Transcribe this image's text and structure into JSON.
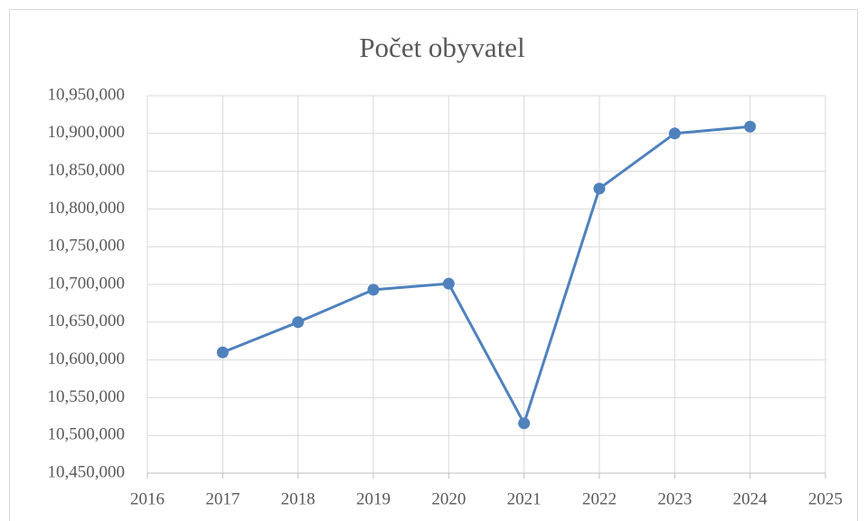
{
  "chart_data": {
    "type": "line",
    "title": "Počet obyvatel",
    "x": [
      2017,
      2018,
      2019,
      2020,
      2021,
      2022,
      2023,
      2024
    ],
    "series": [
      {
        "color": "#4f81bd",
        "values": [
          10610000,
          10650000,
          10693000,
          10701000,
          10516000,
          10827000,
          10900000,
          10909000
        ]
      }
    ],
    "xlim": [
      2016,
      2025
    ],
    "xticks": [
      2016,
      2017,
      2018,
      2019,
      2020,
      2021,
      2022,
      2023,
      2024,
      2025
    ],
    "ylim": [
      10450000,
      10950000
    ],
    "yticks": [
      {
        "value": 10450000,
        "label": "10,450,000"
      },
      {
        "value": 10500000,
        "label": "10,500,000"
      },
      {
        "value": 10550000,
        "label": "10,550,000"
      },
      {
        "value": 10600000,
        "label": "10,600,000"
      },
      {
        "value": 10650000,
        "label": "10,650,000"
      },
      {
        "value": 10700000,
        "label": "10,700,000"
      },
      {
        "value": 10750000,
        "label": "10,750,000"
      },
      {
        "value": 10800000,
        "label": "10,800,000"
      },
      {
        "value": 10850000,
        "label": "10,850,000"
      },
      {
        "value": 10900000,
        "label": "10,900,000"
      },
      {
        "value": 10950000,
        "label": "10,950,000"
      }
    ],
    "grid": true
  }
}
